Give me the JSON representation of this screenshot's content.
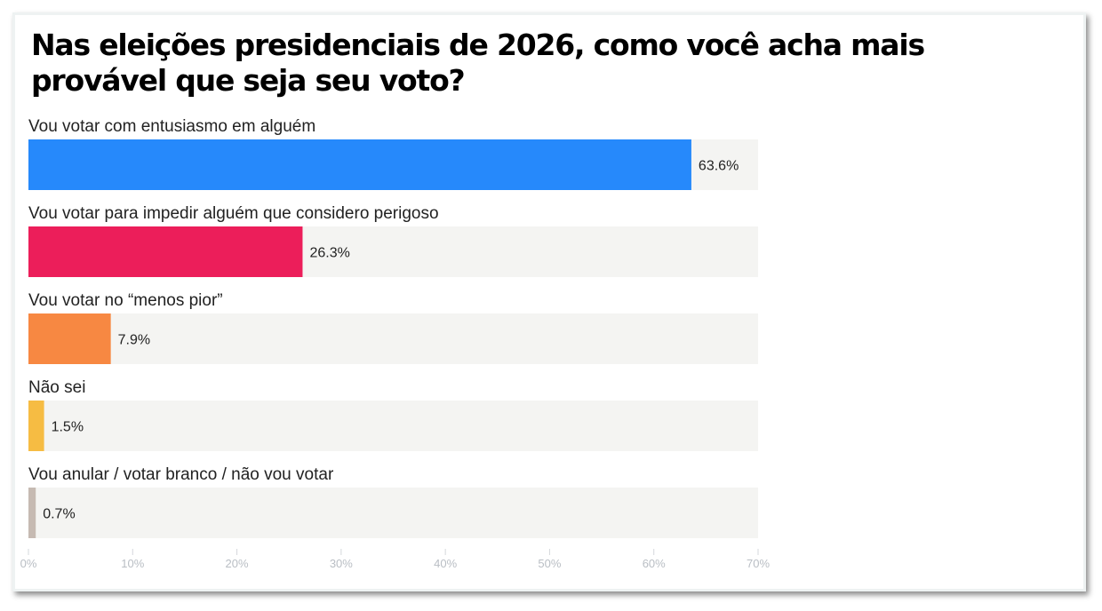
{
  "chart_data": {
    "type": "bar",
    "orientation": "horizontal",
    "title": "Nas eleições presidenciais de 2026, como você acha mais provável que seja seu voto?",
    "categories": [
      "Vou votar com entusiasmo em alguém",
      "Vou votar para impedir alguém que considero perigoso",
      "Vou votar no “menos pior”",
      "Não sei",
      "Vou anular / votar branco / não vou votar"
    ],
    "values": [
      63.6,
      26.3,
      7.9,
      1.5,
      0.7
    ],
    "value_labels": [
      "63.6%",
      "26.3%",
      "7.9%",
      "1.5%",
      "0.7%"
    ],
    "colors": [
      "#2689fb",
      "#ec1e5a",
      "#f78842",
      "#f6bc43",
      "#c6bab2"
    ],
    "track_color": "#f4f4f2",
    "xlabel": "",
    "ylabel": "",
    "xlim": [
      0,
      70
    ],
    "x_ticks": [
      0,
      10,
      20,
      30,
      40,
      50,
      60,
      70
    ],
    "x_tick_labels": [
      "0%",
      "10%",
      "20%",
      "30%",
      "40%",
      "50%",
      "60%",
      "70%"
    ],
    "grid": false,
    "legend": "none"
  }
}
